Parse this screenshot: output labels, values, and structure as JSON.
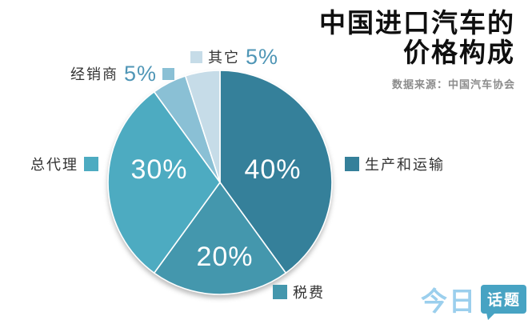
{
  "header": {
    "title_line1": "中国进口汽车的",
    "title_line2": "价格构成",
    "source": "数据来源：中国汽车协会"
  },
  "chart_data": {
    "type": "pie",
    "title": "中国进口汽车的价格构成",
    "source_note": "数据来源：中国汽车协会",
    "unit": "%",
    "start_angle_deg": 0,
    "direction": "clockwise",
    "slices": [
      {
        "label": "生产和运输",
        "value": 40,
        "color": "#35809a",
        "label_position": "inside"
      },
      {
        "label": "税费",
        "value": 20,
        "color": "#4497ad",
        "label_position": "inside"
      },
      {
        "label": "总代理",
        "value": 30,
        "color": "#4dabc1",
        "label_position": "inside"
      },
      {
        "label": "经销商",
        "value": 5,
        "color": "#8ac0d5",
        "label_position": "outside"
      },
      {
        "label": "其它",
        "value": 5,
        "color": "#c6dce8",
        "label_position": "outside"
      }
    ]
  },
  "logo": {
    "part1": "今日",
    "part2": "话题"
  }
}
